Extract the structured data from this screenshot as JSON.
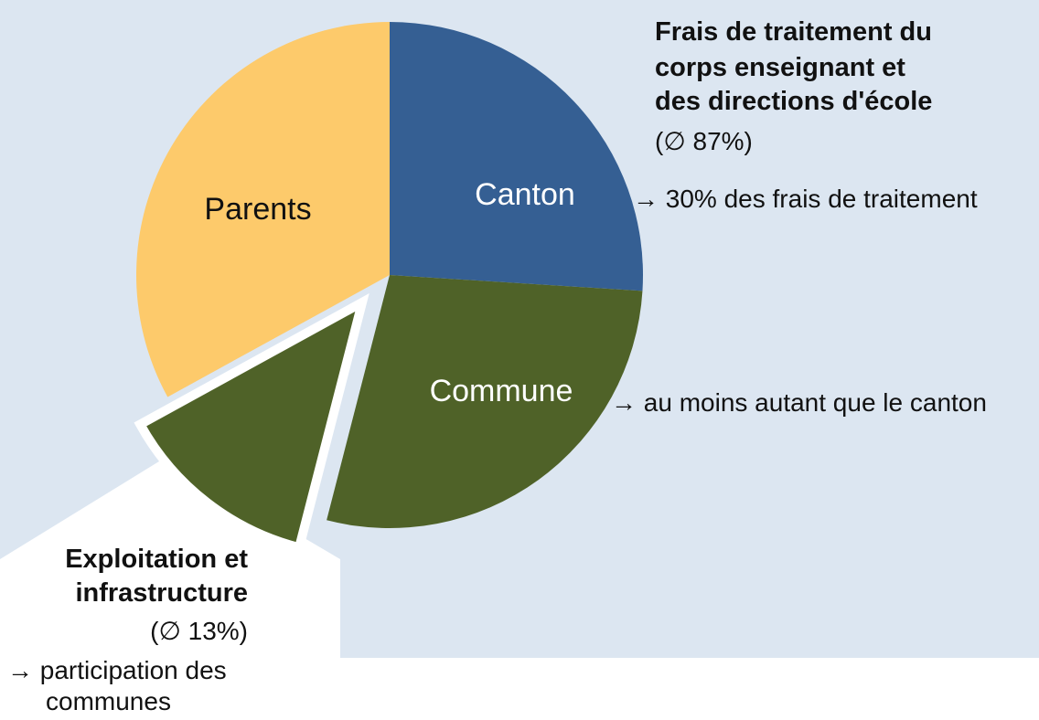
{
  "chart_data": {
    "type": "pie",
    "slices": [
      {
        "name": "Canton",
        "share": 0.26,
        "color": "#355f93",
        "label_color": "#ffffff"
      },
      {
        "name": "Commune",
        "share": 0.28,
        "color": "#4f6228",
        "label_color": "#ffffff"
      },
      {
        "name": "",
        "share": 0.13,
        "color": "#4f6228",
        "exploded": true
      },
      {
        "name": "Parents",
        "share": 0.33,
        "color": "#fdca6b",
        "label_color": "#111111"
      }
    ]
  },
  "colors": {
    "background_panel": "#dce6f1",
    "exploded_area": "#ffffff"
  },
  "frais": {
    "title_line1": "Frais de traitement du",
    "title_line2": "corps enseignant et",
    "title_line3": "des directions d'école",
    "share": "(∅ 87%)",
    "canton_note": "→ 30% des frais de traitement",
    "commune_note": "→ au moins autant que le canton"
  },
  "exploitation": {
    "title_line1": "Exploitation et",
    "title_line2": "infrastructure",
    "share": "(∅ 13%)",
    "note_line1": "→ participation des",
    "note_line2": "communes"
  }
}
